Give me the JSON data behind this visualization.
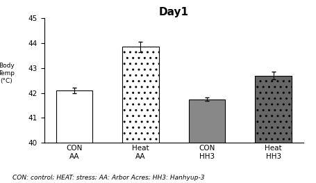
{
  "title": "Day1",
  "categories": [
    "CON\nAA",
    "Heat\nAA",
    "CON\nHH3",
    "Heat\nHH3"
  ],
  "values": [
    42.1,
    43.85,
    41.75,
    42.7
  ],
  "errors": [
    0.1,
    0.2,
    0.08,
    0.15
  ],
  "ylim": [
    40,
    45
  ],
  "yticks": [
    40,
    41,
    42,
    43,
    44,
    45
  ],
  "bar_colors": [
    "white",
    "white",
    "#888888",
    "#666666"
  ],
  "bar_edgecolors": [
    "black",
    "black",
    "black",
    "black"
  ],
  "bar_hatches": [
    "",
    "..",
    "",
    ".."
  ],
  "bar_width": 0.55,
  "title_fontsize": 11,
  "tick_fontsize": 7.5,
  "ylabel_chars": [
    "B",
    "o",
    "d",
    "y",
    "\n",
    "T",
    "e",
    "m",
    "p",
    "\n",
    "(",
    "°",
    "C",
    ")"
  ],
  "ylabel_str": "Body\nTemp\n(°C)",
  "caption": "CON: control; HEAT: stress; AA: Arbor Acres; HH3: Hanhyup-3",
  "caption_fontsize": 6.5,
  "background_color": "#ffffff"
}
